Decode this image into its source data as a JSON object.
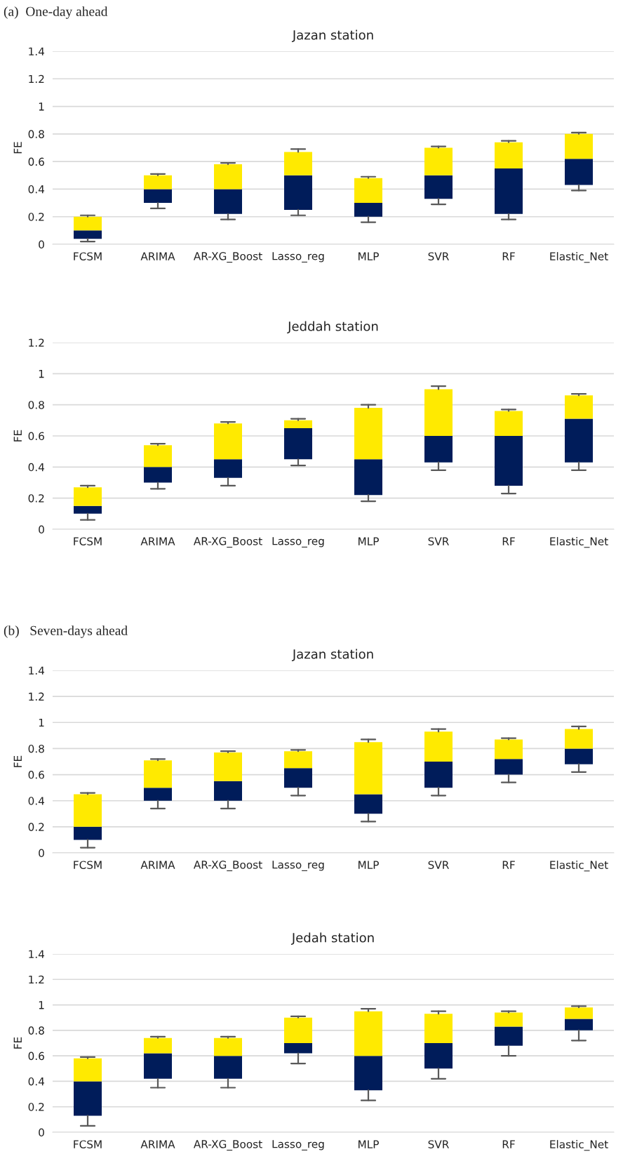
{
  "chart_data": [
    {
      "type": "box",
      "title": "Jazan station",
      "ylabel": "FE",
      "annotations": [
        "(a)  One-day ahead"
      ],
      "categories": [
        "FCSM",
        "ARIMA",
        "AR-XG_Boost",
        "Lasso_reg",
        "MLP",
        "SVR",
        "RF",
        "Elastic_Net"
      ],
      "colors": [
        "#001c5a",
        "#001c5a",
        "#001c5a",
        "#001c5a",
        "#001c5a",
        "#001c5a",
        "#001c5a",
        "#001c5a"
      ],
      "ylim": [
        0,
        1.4
      ],
      "yticks": [
        0,
        0.2,
        0.4,
        0.6,
        0.8,
        1,
        1.2,
        1.4
      ],
      "grid": "y",
      "boxes": [
        {
          "low": 0.02,
          "q1": 0.04,
          "median": 0.1,
          "q3": 0.2,
          "high": 0.21
        },
        {
          "low": 0.26,
          "q1": 0.3,
          "median": 0.4,
          "q3": 0.5,
          "high": 0.51
        },
        {
          "low": 0.18,
          "q1": 0.22,
          "median": 0.4,
          "q3": 0.58,
          "high": 0.59
        },
        {
          "low": 0.21,
          "q1": 0.25,
          "median": 0.5,
          "q3": 0.67,
          "high": 0.69
        },
        {
          "low": 0.16,
          "q1": 0.2,
          "median": 0.3,
          "q3": 0.48,
          "high": 0.49
        },
        {
          "low": 0.29,
          "q1": 0.33,
          "median": 0.5,
          "q3": 0.7,
          "high": 0.71
        },
        {
          "low": 0.18,
          "q1": 0.22,
          "median": 0.55,
          "q3": 0.74,
          "high": 0.75
        },
        {
          "low": 0.39,
          "q1": 0.43,
          "median": 0.62,
          "q3": 0.8,
          "high": 0.81
        }
      ]
    },
    {
      "type": "box",
      "title": "Jeddah station",
      "ylabel": "FE",
      "categories": [
        "FCSM",
        "ARIMA",
        "AR-XG_Boost",
        "Lasso_reg",
        "MLP",
        "SVR",
        "RF",
        "Elastic_Net"
      ],
      "colors": [
        "#001c5a",
        "#001c5a",
        "#001c5a",
        "#001c5a",
        "#001c5a",
        "#001c5a",
        "#001c5a",
        "#001c5a"
      ],
      "ylim": [
        0,
        1.2
      ],
      "yticks": [
        0,
        0.2,
        0.4,
        0.6,
        0.8,
        1,
        1.2
      ],
      "grid": "y",
      "boxes": [
        {
          "low": 0.06,
          "q1": 0.1,
          "median": 0.15,
          "q3": 0.27,
          "high": 0.28
        },
        {
          "low": 0.26,
          "q1": 0.3,
          "median": 0.4,
          "q3": 0.54,
          "high": 0.55
        },
        {
          "low": 0.28,
          "q1": 0.33,
          "median": 0.45,
          "q3": 0.68,
          "high": 0.69
        },
        {
          "low": 0.41,
          "q1": 0.45,
          "median": 0.65,
          "q3": 0.7,
          "high": 0.71
        },
        {
          "low": 0.18,
          "q1": 0.22,
          "median": 0.45,
          "q3": 0.78,
          "high": 0.8
        },
        {
          "low": 0.38,
          "q1": 0.43,
          "median": 0.6,
          "q3": 0.9,
          "high": 0.92
        },
        {
          "low": 0.23,
          "q1": 0.28,
          "median": 0.6,
          "q3": 0.76,
          "high": 0.77
        },
        {
          "low": 0.38,
          "q1": 0.43,
          "median": 0.71,
          "q3": 0.86,
          "high": 0.87
        }
      ]
    },
    {
      "type": "box",
      "title": "Jazan station",
      "ylabel": "FE",
      "annotations": [
        "(b)   Seven-days ahead"
      ],
      "categories": [
        "FCSM",
        "ARIMA",
        "AR-XG_Boost",
        "Lasso_reg",
        "MLP",
        "SVR",
        "RF",
        "Elastic_Net"
      ],
      "colors": [
        "#001c5a",
        "#001c5a",
        "#001c5a",
        "#001c5a",
        "#001c5a",
        "#001c5a",
        "#001c5a",
        "#001c5a"
      ],
      "ylim": [
        0,
        1.4
      ],
      "yticks": [
        0,
        0.2,
        0.4,
        0.6,
        0.8,
        1,
        1.2,
        1.4
      ],
      "grid": "y",
      "boxes": [
        {
          "low": 0.04,
          "q1": 0.1,
          "median": 0.2,
          "q3": 0.45,
          "high": 0.46
        },
        {
          "low": 0.34,
          "q1": 0.4,
          "median": 0.5,
          "q3": 0.71,
          "high": 0.72
        },
        {
          "low": 0.34,
          "q1": 0.4,
          "median": 0.55,
          "q3": 0.77,
          "high": 0.78
        },
        {
          "low": 0.44,
          "q1": 0.5,
          "median": 0.65,
          "q3": 0.78,
          "high": 0.79
        },
        {
          "low": 0.24,
          "q1": 0.3,
          "median": 0.45,
          "q3": 0.85,
          "high": 0.87
        },
        {
          "low": 0.44,
          "q1": 0.5,
          "median": 0.7,
          "q3": 0.93,
          "high": 0.95
        },
        {
          "low": 0.54,
          "q1": 0.6,
          "median": 0.72,
          "q3": 0.87,
          "high": 0.88
        },
        {
          "low": 0.62,
          "q1": 0.68,
          "median": 0.8,
          "q3": 0.95,
          "high": 0.97
        }
      ]
    },
    {
      "type": "box",
      "title": "Jedah station",
      "ylabel": "FE",
      "categories": [
        "FCSM",
        "ARIMA",
        "AR-XG_Boost",
        "Lasso_reg",
        "MLP",
        "SVR",
        "RF",
        "Elastic_Net"
      ],
      "colors": [
        "#001c5a",
        "#001c5a",
        "#001c5a",
        "#001c5a",
        "#001c5a",
        "#001c5a",
        "#001c5a",
        "#001c5a"
      ],
      "ylim": [
        0,
        1.4
      ],
      "yticks": [
        0,
        0.2,
        0.4,
        0.6,
        0.8,
        1,
        1.2,
        1.4
      ],
      "grid": "y",
      "boxes": [
        {
          "low": 0.05,
          "q1": 0.13,
          "median": 0.4,
          "q3": 0.58,
          "high": 0.59
        },
        {
          "low": 0.35,
          "q1": 0.42,
          "median": 0.62,
          "q3": 0.74,
          "high": 0.75
        },
        {
          "low": 0.35,
          "q1": 0.42,
          "median": 0.6,
          "q3": 0.74,
          "high": 0.75
        },
        {
          "low": 0.54,
          "q1": 0.62,
          "median": 0.7,
          "q3": 0.9,
          "high": 0.91
        },
        {
          "low": 0.25,
          "q1": 0.33,
          "median": 0.6,
          "q3": 0.95,
          "high": 0.97
        },
        {
          "low": 0.42,
          "q1": 0.5,
          "median": 0.7,
          "q3": 0.93,
          "high": 0.95
        },
        {
          "low": 0.6,
          "q1": 0.68,
          "median": 0.83,
          "q3": 0.94,
          "high": 0.95
        },
        {
          "low": 0.72,
          "q1": 0.8,
          "median": 0.89,
          "q3": 0.98,
          "high": 0.99
        }
      ]
    }
  ]
}
